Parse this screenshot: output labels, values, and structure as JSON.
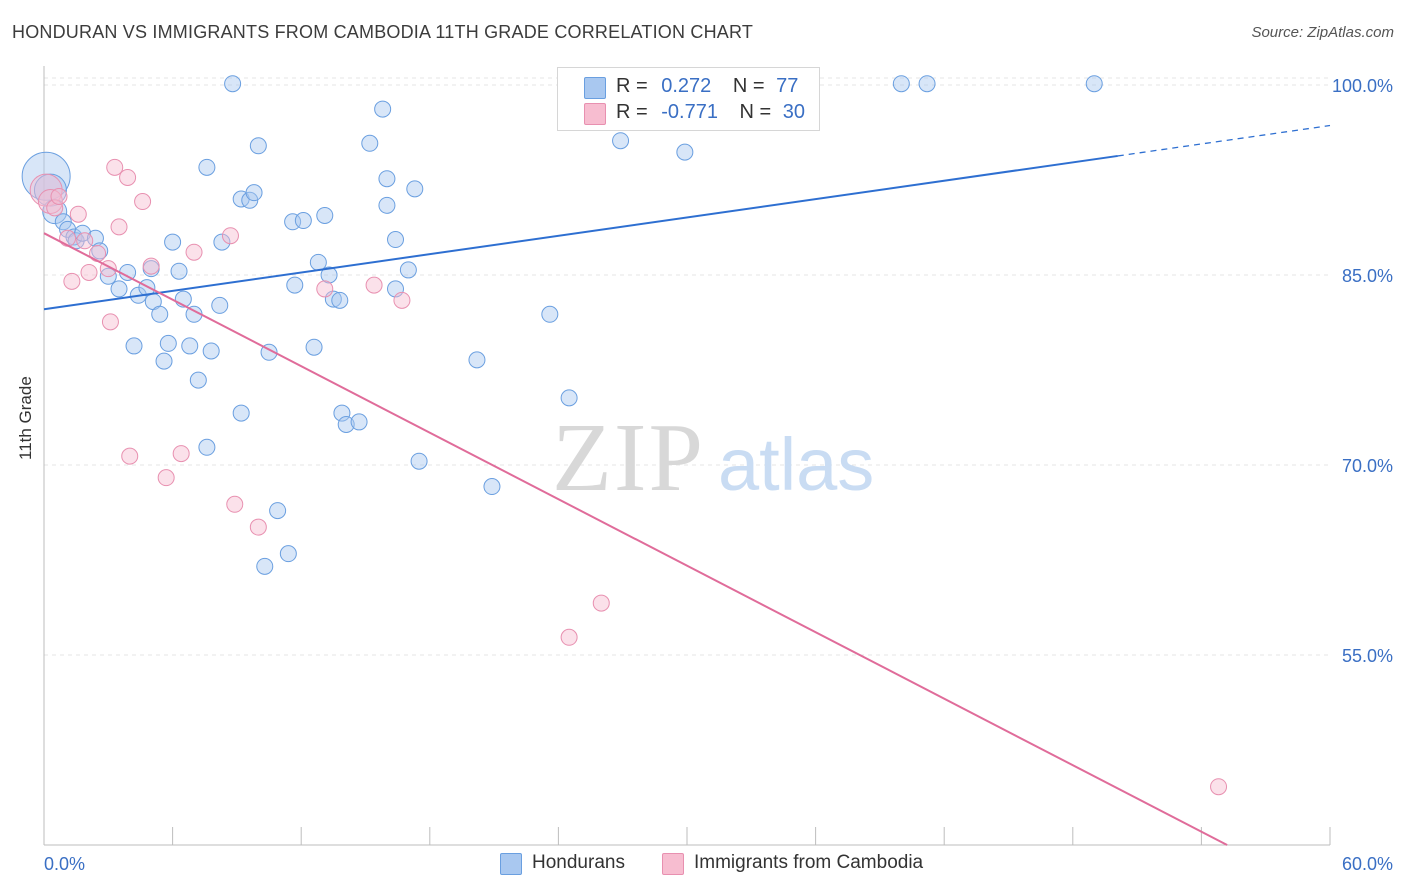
{
  "title": "HONDURAN VS IMMIGRANTS FROM CAMBODIA 11TH GRADE CORRELATION CHART",
  "source": "Source: ZipAtlas.com",
  "watermark": {
    "zip": "ZIP",
    "atlas": "atlas"
  },
  "legend": {
    "r_label": "R =",
    "n_label": "N =",
    "rows": [
      {
        "r": "0.272",
        "n": "77",
        "color": "#a9c8f0"
      },
      {
        "r": "-0.771",
        "n": "30",
        "color": "#f7bdd0"
      }
    ]
  },
  "bottom_legend": [
    {
      "label": "Hondurans",
      "color": "#a9c8f0"
    },
    {
      "label": "Immigrants from Cambodia",
      "color": "#f7bdd0"
    }
  ],
  "colors": {
    "blue_fill": "#a9c8f0",
    "blue_stroke": "#6a9fe0",
    "blue_line": "#2e6fd1",
    "pink_fill": "#f7bdd0",
    "pink_stroke": "#e890b0",
    "pink_line": "#e06c9a",
    "tick_label": "#3a6fc4",
    "grid": "#e4e4e4"
  },
  "chart_data": {
    "type": "scatter",
    "title": "HONDURAN VS IMMIGRANTS FROM CAMBODIA 11TH GRADE CORRELATION CHART",
    "xlabel": "",
    "ylabel": "11th Grade",
    "xlim": [
      0,
      60
    ],
    "ylim": [
      40,
      101.5
    ],
    "x_tick_labels": [
      "0.0%",
      "60.0%"
    ],
    "y_ticks": [
      100,
      85,
      70,
      55
    ],
    "y_tick_labels": [
      "100.0%",
      "85.0%",
      "70.0%",
      "55.0%"
    ],
    "grid": true,
    "legend_position": "top-center",
    "series": [
      {
        "name": "Hondurans",
        "R": 0.272,
        "N": 77,
        "trend": {
          "x0": 0,
          "y0": 82.3,
          "x1": 50.1,
          "y1": 94.4,
          "dashed_to_x": 60,
          "dashed_to_y": 96.8
        },
        "points": [
          [
            0.1,
            92.8,
            3
          ],
          [
            0.3,
            91.7,
            2
          ],
          [
            0.5,
            90.0,
            1.5
          ],
          [
            0.9,
            89.2,
            1
          ],
          [
            1.1,
            88.6,
            1
          ],
          [
            1.4,
            88.0,
            1
          ],
          [
            1.5,
            87.7,
            1
          ],
          [
            1.8,
            88.3,
            1
          ],
          [
            2.4,
            87.9,
            1
          ],
          [
            2.6,
            86.9,
            1
          ],
          [
            3.0,
            84.9,
            1
          ],
          [
            3.5,
            83.9,
            1
          ],
          [
            3.9,
            85.2,
            1
          ],
          [
            4.4,
            83.4,
            1
          ],
          [
            4.8,
            84.0,
            1
          ],
          [
            5.0,
            85.5,
            1
          ],
          [
            5.1,
            82.9,
            1
          ],
          [
            5.4,
            81.9,
            1
          ],
          [
            4.2,
            79.4,
            1
          ],
          [
            5.6,
            78.2,
            1
          ],
          [
            5.8,
            79.6,
            1
          ],
          [
            6.0,
            87.6,
            1
          ],
          [
            6.3,
            85.3,
            1
          ],
          [
            6.5,
            83.1,
            1
          ],
          [
            6.8,
            79.4,
            1
          ],
          [
            7.0,
            81.9,
            1
          ],
          [
            7.2,
            76.7,
            1
          ],
          [
            7.8,
            79.0,
            1
          ],
          [
            7.6,
            71.4,
            1
          ],
          [
            7.6,
            93.5,
            1
          ],
          [
            8.3,
            87.6,
            1
          ],
          [
            8.2,
            82.6,
            1
          ],
          [
            8.8,
            100.1,
            1
          ],
          [
            9.2,
            74.1,
            1
          ],
          [
            9.2,
            91.0,
            1
          ],
          [
            9.6,
            90.9,
            1
          ],
          [
            9.8,
            91.5,
            1
          ],
          [
            10.0,
            95.2,
            1
          ],
          [
            10.5,
            78.9,
            1
          ],
          [
            10.9,
            66.4,
            1
          ],
          [
            10.3,
            62.0,
            1
          ],
          [
            11.4,
            63.0,
            1
          ],
          [
            11.7,
            84.2,
            1
          ],
          [
            11.6,
            89.2,
            1
          ],
          [
            12.1,
            89.3,
            1
          ],
          [
            12.6,
            79.3,
            1
          ],
          [
            12.8,
            86.0,
            1
          ],
          [
            13.1,
            89.7,
            1
          ],
          [
            13.3,
            85.0,
            1
          ],
          [
            13.5,
            83.1,
            1
          ],
          [
            13.8,
            83.0,
            1
          ],
          [
            13.9,
            74.1,
            1
          ],
          [
            14.1,
            73.2,
            1
          ],
          [
            14.7,
            73.4,
            1
          ],
          [
            15.2,
            95.4,
            1
          ],
          [
            15.8,
            98.1,
            1
          ],
          [
            16.0,
            92.6,
            1
          ],
          [
            16.0,
            90.5,
            1
          ],
          [
            16.4,
            87.8,
            1
          ],
          [
            16.4,
            83.9,
            1
          ],
          [
            17.0,
            85.4,
            1
          ],
          [
            17.3,
            91.8,
            1
          ],
          [
            17.5,
            70.3,
            1
          ],
          [
            20.2,
            78.3,
            1
          ],
          [
            20.9,
            68.3,
            1
          ],
          [
            23.6,
            81.9,
            1
          ],
          [
            24.5,
            75.3,
            1
          ],
          [
            24.8,
            100.1,
            1
          ],
          [
            26.9,
            95.6,
            1
          ],
          [
            28.1,
            100.1,
            1
          ],
          [
            29.9,
            94.7,
            1
          ],
          [
            40.0,
            100.1,
            1
          ],
          [
            41.2,
            100.1,
            1
          ],
          [
            49.0,
            100.1,
            1
          ]
        ]
      },
      {
        "name": "Immigrants from Cambodia",
        "R": -0.771,
        "N": 30,
        "trend": {
          "x0": 0,
          "y0": 88.3,
          "x1": 55.2,
          "y1": 40
        },
        "points": [
          [
            0.1,
            91.7,
            2
          ],
          [
            0.3,
            90.8,
            1.5
          ],
          [
            0.5,
            90.3,
            1
          ],
          [
            0.7,
            91.2,
            1
          ],
          [
            1.1,
            87.9,
            1
          ],
          [
            1.3,
            84.5,
            1
          ],
          [
            1.6,
            89.8,
            1
          ],
          [
            1.9,
            87.7,
            1
          ],
          [
            2.1,
            85.2,
            1
          ],
          [
            2.5,
            86.7,
            1
          ],
          [
            3.0,
            85.5,
            1
          ],
          [
            3.1,
            81.3,
            1
          ],
          [
            3.3,
            93.5,
            1
          ],
          [
            3.5,
            88.8,
            1
          ],
          [
            3.9,
            92.7,
            1
          ],
          [
            4.0,
            70.7,
            1
          ],
          [
            4.6,
            90.8,
            1
          ],
          [
            5.0,
            85.7,
            1
          ],
          [
            5.7,
            69.0,
            1
          ],
          [
            6.4,
            70.9,
            1
          ],
          [
            7.0,
            86.8,
            1
          ],
          [
            8.7,
            88.1,
            1
          ],
          [
            8.9,
            66.9,
            1
          ],
          [
            10.0,
            65.1,
            1
          ],
          [
            13.1,
            83.9,
            1
          ],
          [
            15.4,
            84.2,
            1
          ],
          [
            16.7,
            83.0,
            1
          ],
          [
            24.5,
            56.4,
            1
          ],
          [
            26.0,
            59.1,
            1
          ],
          [
            54.8,
            44.6,
            1
          ]
        ]
      }
    ]
  }
}
